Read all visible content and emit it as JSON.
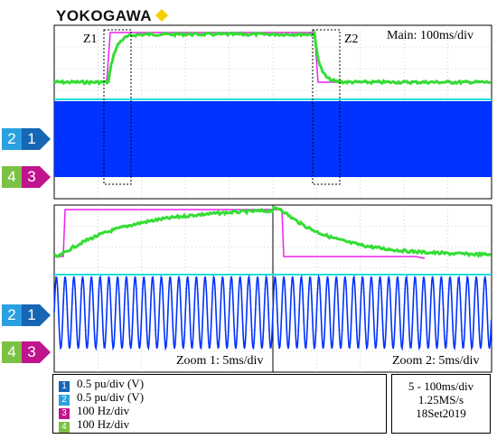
{
  "header": {
    "brand": "YOKOGAWA",
    "brand_color": "#f5d000"
  },
  "main_panel": {
    "label": "Main: 100ms/div",
    "zoom1_marker": "Z1",
    "zoom2_marker": "Z2"
  },
  "zoom_panels": {
    "zoom1_label": "Zoom 1: 5ms/div",
    "zoom2_label": "Zoom 2: 5ms/div"
  },
  "channel_markers": {
    "group_a": [
      {
        "id": "2",
        "color": "#2aa0e0"
      },
      {
        "id": "1",
        "color": "#1666b4"
      }
    ],
    "group_b": [
      {
        "id": "4",
        "color": "#7bc143"
      },
      {
        "id": "3",
        "color": "#c0148c"
      }
    ]
  },
  "legend": {
    "channels": [
      {
        "id": "1",
        "text": "0.5 pu/div (V)",
        "color": "#1666b4"
      },
      {
        "id": "2",
        "text": "0.5 pu/div (V)",
        "color": "#2aa0e0"
      },
      {
        "id": "3",
        "text": "100 Hz/div",
        "color": "#c0148c"
      },
      {
        "id": "4",
        "text": "100 Hz/div",
        "color": "#7bc143"
      }
    ]
  },
  "acquisition": {
    "line1": "5 - 100ms/div",
    "line2": "1.25MS/s",
    "line3": "18Set2019"
  },
  "colors": {
    "ch1": "#0033ff",
    "ch2": "#22dddd",
    "ch3": "#ee22ee",
    "ch4": "#33dd33"
  }
}
